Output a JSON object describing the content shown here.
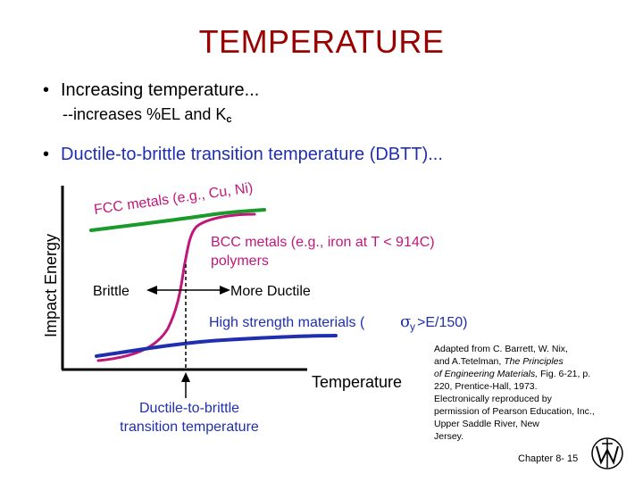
{
  "slide": {
    "title": "TEMPERATURE",
    "bullet1": "Increasing temperature...",
    "bullet1_sub_prefix": "--increases %EL and K",
    "bullet1_sub_subscript": "c",
    "bullet2": "Ductile-to-brittle transition temperature (DBTT)...",
    "bullet_symbol": "•"
  },
  "figure": {
    "ylabel": "Impact Energy",
    "xlabel": "Temperature",
    "fcc_label": "FCC metals (e.g., Cu, Ni)",
    "bcc_label_line1": "BCC metals (e.g., iron at T < 914C)",
    "bcc_label_line2": "polymers",
    "brittle_label": "Brittle",
    "ductile_label": "More Ductile",
    "hs_label": "High strength materials (",
    "hs_sigma": "σ",
    "hs_sub": "y",
    "hs_tail": ">E/150)",
    "dbtt_line1": "Ductile-to-brittle",
    "dbtt_line2": "transition temperature",
    "colors": {
      "fcc": "#1a9a2a",
      "bcc": "#c0187a",
      "highstrength": "#1f2fb0",
      "label_blue": "#1f2fb0",
      "title": "#990000"
    }
  },
  "credit": {
    "lines": [
      "Adapted from C. Barrett, W. Nix,",
      "and A.Tetelman, ",
      "of Engineering Materials, ",
      "220, Prentice-Hall, 1973.",
      "Electronically reproduced by",
      "permission of Pearson Education, Inc.,",
      "Upper Saddle River, New",
      "Jersey."
    ],
    "italic1": "The Principles",
    "fig_ref": "Fig. 6-21, p."
  },
  "footer": {
    "chapter": "Chapter 8-  15",
    "logo_icon": "university-seal-icon"
  }
}
